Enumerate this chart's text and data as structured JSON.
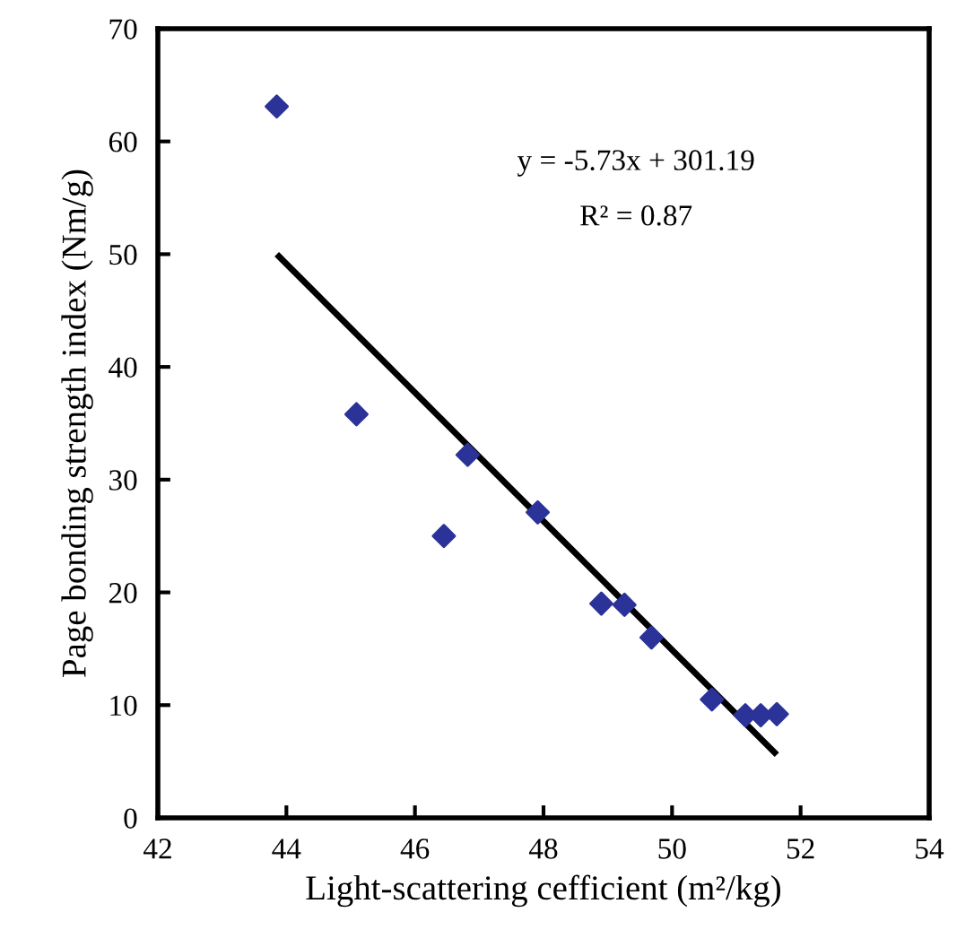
{
  "chart_data": {
    "type": "scatter",
    "xlabel": "Light-scattering cefficient (m²/kg)",
    "ylabel": "Page bonding strength index (Nm/g)",
    "xlim": [
      42,
      54
    ],
    "xticks": [
      42,
      44,
      46,
      48,
      50,
      52,
      54
    ],
    "ylim": [
      0,
      70
    ],
    "yticks": [
      0,
      10,
      20,
      30,
      40,
      50,
      60,
      70
    ],
    "grid": false,
    "legend": false,
    "marker": "diamond",
    "series": [
      {
        "color": "#2b3399",
        "x": [
          43.85,
          45.09,
          46.45,
          46.82,
          47.91,
          48.9,
          49.26,
          49.68,
          50.62,
          51.14,
          51.38,
          51.63
        ],
        "values": [
          63.1,
          35.8,
          25.0,
          32.2,
          27.1,
          19.0,
          18.9,
          16.0,
          10.5,
          9.1,
          9.1,
          9.2
        ]
      },
      {
        "type": "line",
        "color": "#000000",
        "line_style": "solid",
        "marker": "none",
        "x": [
          43.85,
          51.63
        ],
        "values": [
          50.0,
          5.6
        ]
      }
    ],
    "annotations": [
      "y = -5.73x + 301.19",
      "R² = 0.87"
    ]
  }
}
